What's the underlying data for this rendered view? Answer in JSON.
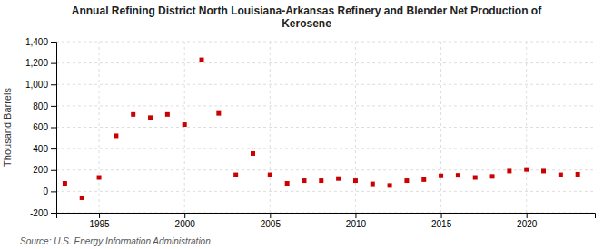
{
  "chart_data": {
    "type": "scatter",
    "title": "Annual Refining District North Louisiana-Arkansas Refinery and Blender Net Production of\nKerosene",
    "y_label": "Thousand Barrels",
    "annotations": [
      "Source: U.S. Energy Information Administration"
    ],
    "x": [
      1993,
      1994,
      1995,
      1996,
      1997,
      1998,
      1999,
      2000,
      2001,
      2002,
      2003,
      2004,
      2005,
      2006,
      2007,
      2008,
      2009,
      2010,
      2011,
      2012,
      2013,
      2014,
      2015,
      2016,
      2017,
      2018,
      2019,
      2020,
      2021,
      2022,
      2023
    ],
    "values": [
      75,
      -60,
      130,
      520,
      720,
      690,
      720,
      625,
      1230,
      730,
      155,
      355,
      155,
      75,
      100,
      100,
      120,
      100,
      70,
      55,
      100,
      110,
      145,
      150,
      130,
      140,
      190,
      205,
      190,
      155,
      160
    ],
    "color": "#cc0000",
    "marker": "square",
    "xlim": [
      1992.5,
      2024
    ],
    "xticks": [
      1995,
      2000,
      2005,
      2010,
      2015,
      2020
    ],
    "ylim": [
      -200,
      1400
    ],
    "yticks": [
      -200,
      0,
      200,
      400,
      600,
      800,
      {
        "value": 1000,
        "label": "1,000"
      },
      {
        "value": 1200,
        "label": "1,200"
      },
      {
        "value": 1400,
        "label": "1,400"
      }
    ],
    "grid": true
  }
}
